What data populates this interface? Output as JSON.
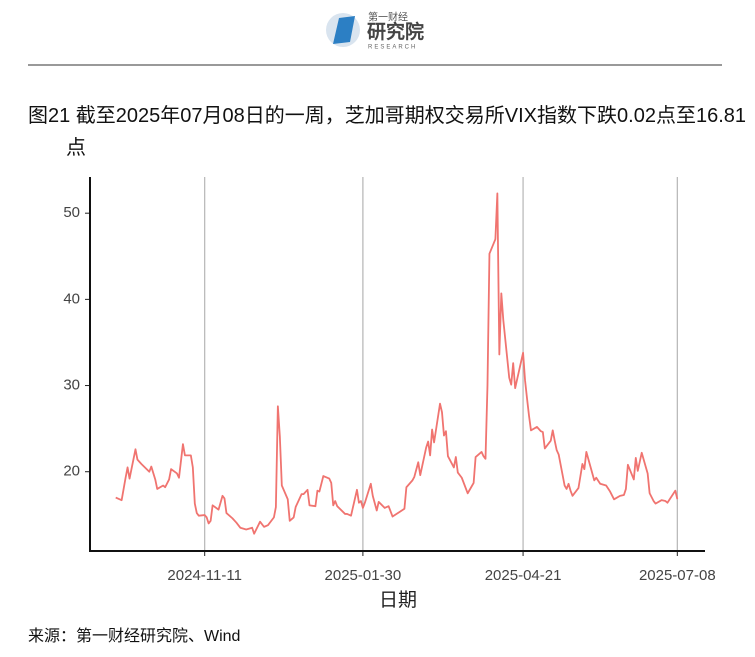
{
  "header": {
    "logo_cn": "第一财经",
    "logo_main": "研究院",
    "logo_en": "RESEARCH"
  },
  "chart_data": {
    "type": "line",
    "title": "图21  截至2025年07月08日的一周，芝加哥期权交易所VIX指数下跌0.02点至16.81点",
    "x_label": "日期",
    "color": "#f07470",
    "x": [
      "2024-09-27",
      "2024-09-30",
      "2024-10-02",
      "2024-10-03",
      "2024-10-04",
      "2024-10-07",
      "2024-10-08",
      "2024-10-10",
      "2024-10-14",
      "2024-10-15",
      "2024-10-17",
      "2024-10-18",
      "2024-10-21",
      "2024-10-22",
      "2024-10-24",
      "2024-10-25",
      "2024-10-28",
      "2024-10-29",
      "2024-10-31",
      "2024-11-01",
      "2024-11-04",
      "2024-11-05",
      "2024-11-06",
      "2024-11-07",
      "2024-11-08",
      "2024-11-11",
      "2024-11-12",
      "2024-11-13",
      "2024-11-14",
      "2024-11-15",
      "2024-11-18",
      "2024-11-20",
      "2024-11-21",
      "2024-11-22",
      "2024-11-25",
      "2024-11-27",
      "2024-11-29",
      "2024-12-02",
      "2024-12-05",
      "2024-12-06",
      "2024-12-09",
      "2024-12-11",
      "2024-12-13",
      "2024-12-16",
      "2024-12-17",
      "2024-12-18",
      "2024-12-19",
      "2024-12-20",
      "2024-12-23",
      "2024-12-24",
      "2024-12-26",
      "2024-12-27",
      "2024-12-30",
      "2024-12-31",
      "2025-01-02",
      "2025-01-03",
      "2025-01-06",
      "2025-01-07",
      "2025-01-08",
      "2025-01-10",
      "2025-01-13",
      "2025-01-14",
      "2025-01-15",
      "2025-01-16",
      "2025-01-17",
      "2025-01-21",
      "2025-01-22",
      "2025-01-24",
      "2025-01-27",
      "2025-01-28",
      "2025-01-29",
      "2025-01-30",
      "2025-01-31",
      "2025-02-03",
      "2025-02-04",
      "2025-02-06",
      "2025-02-07",
      "2025-02-10",
      "2025-02-12",
      "2025-02-14",
      "2025-02-18",
      "2025-02-20",
      "2025-02-21",
      "2025-02-24",
      "2025-02-25",
      "2025-02-27",
      "2025-02-28",
      "2025-03-03",
      "2025-03-04",
      "2025-03-05",
      "2025-03-06",
      "2025-03-07",
      "2025-03-10",
      "2025-03-11",
      "2025-03-12",
      "2025-03-13",
      "2025-03-14",
      "2025-03-17",
      "2025-03-18",
      "2025-03-19",
      "2025-03-21",
      "2025-03-24",
      "2025-03-26",
      "2025-03-27",
      "2025-03-28",
      "2025-03-31",
      "2025-04-01",
      "2025-04-02",
      "2025-04-03",
      "2025-04-04",
      "2025-04-07",
      "2025-04-08",
      "2025-04-09",
      "2025-04-10",
      "2025-04-11",
      "2025-04-14",
      "2025-04-15",
      "2025-04-16",
      "2025-04-17",
      "2025-04-21",
      "2025-04-22",
      "2025-04-23",
      "2025-04-24",
      "2025-04-25",
      "2025-04-28",
      "2025-04-30",
      "2025-05-01",
      "2025-05-02",
      "2025-05-05",
      "2025-05-06",
      "2025-05-07",
      "2025-05-08",
      "2025-05-09",
      "2025-05-12",
      "2025-05-13",
      "2025-05-14",
      "2025-05-15",
      "2025-05-16",
      "2025-05-19",
      "2025-05-21",
      "2025-05-22",
      "2025-05-23",
      "2025-05-27",
      "2025-05-28",
      "2025-05-30",
      "2025-06-02",
      "2025-06-04",
      "2025-06-06",
      "2025-06-09",
      "2025-06-11",
      "2025-06-12",
      "2025-06-13",
      "2025-06-16",
      "2025-06-17",
      "2025-06-18",
      "2025-06-20",
      "2025-06-23",
      "2025-06-24",
      "2025-06-26",
      "2025-06-27",
      "2025-06-30",
      "2025-07-02",
      "2025-07-03",
      "2025-07-07",
      "2025-07-08"
    ],
    "values": [
      17.0,
      16.7,
      19.3,
      20.5,
      19.2,
      22.6,
      21.4,
      20.9,
      20.0,
      20.6,
      19.1,
      18.0,
      18.4,
      18.2,
      19.1,
      20.3,
      19.8,
      19.3,
      23.2,
      21.9,
      21.9,
      20.5,
      16.3,
      15.2,
      14.9,
      14.97,
      14.7,
      14.0,
      14.3,
      16.1,
      15.6,
      17.2,
      16.9,
      15.2,
      14.6,
      14.1,
      13.5,
      13.3,
      13.5,
      12.8,
      14.2,
      13.6,
      13.8,
      14.7,
      15.9,
      27.6,
      24.1,
      18.4,
      16.8,
      14.3,
      14.7,
      15.9,
      17.4,
      17.4,
      17.9,
      16.1,
      16.0,
      17.8,
      17.7,
      19.5,
      19.2,
      18.7,
      16.1,
      16.6,
      16.0,
      15.1,
      15.1,
      14.9,
      17.9,
      16.4,
      16.6,
      15.8,
      16.4,
      18.6,
      17.2,
      15.5,
      16.5,
      15.8,
      16.0,
      14.8,
      15.4,
      15.7,
      18.2,
      18.98,
      19.4,
      21.1,
      19.6,
      22.8,
      23.5,
      21.9,
      24.9,
      23.4,
      27.9,
      26.9,
      24.2,
      24.7,
      21.8,
      20.5,
      21.7,
      19.9,
      19.3,
      17.5,
      18.3,
      18.7,
      21.7,
      22.3,
      21.8,
      21.5,
      30.0,
      45.3,
      46.98,
      52.3,
      33.6,
      40.7,
      37.6,
      30.9,
      30.1,
      32.6,
      29.7,
      33.8,
      30.6,
      28.5,
      26.5,
      24.8,
      25.2,
      24.7,
      24.6,
      22.7,
      23.6,
      24.8,
      23.6,
      22.5,
      22.0,
      18.4,
      18.0,
      18.6,
      17.8,
      17.2,
      18.1,
      20.9,
      20.3,
      22.3,
      19.0,
      19.3,
      18.6,
      18.4,
      17.7,
      16.8,
      17.2,
      17.3,
      18.0,
      20.8,
      19.1,
      21.6,
      20.1,
      22.2,
      19.8,
      17.5,
      16.6,
      16.3,
      16.7,
      16.6,
      16.4,
      17.8,
      16.81
    ],
    "xlim": [
      "2024-09-14",
      "2025-07-22"
    ],
    "xticks": [
      "2024-11-11",
      "2025-01-30",
      "2025-04-21",
      "2025-07-08"
    ],
    "ylim": [
      10.8,
      54.2
    ],
    "yticks": [
      20,
      30,
      40,
      50
    ],
    "grid": "x",
    "source": "来源：第一财经研究院、Wind"
  }
}
